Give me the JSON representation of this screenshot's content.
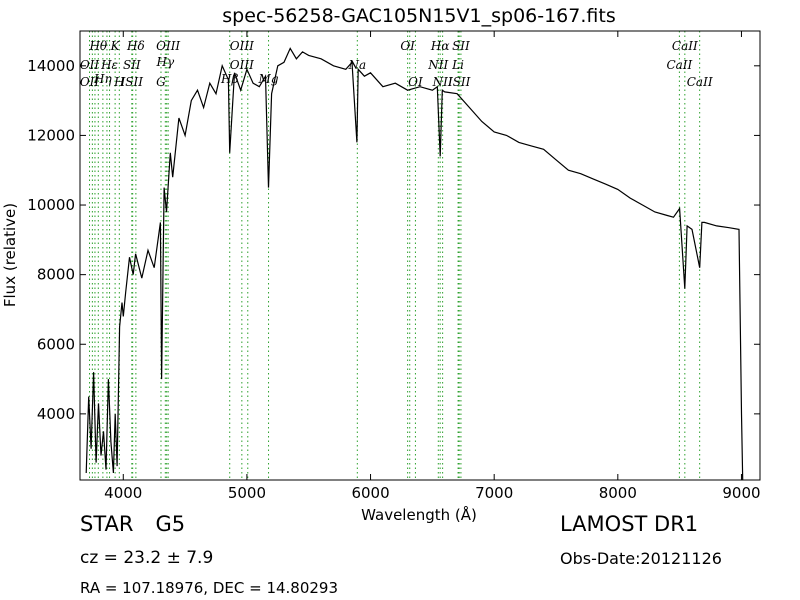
{
  "chart_data": {
    "type": "line",
    "title": "spec-56258-GAC105N15V1_sp06-167.fits",
    "xlabel": "Wavelength (Å)",
    "ylabel": "Flux (relative)",
    "xlim": [
      3650,
      9150
    ],
    "ylim": [
      2100,
      15000
    ],
    "x_ticks": [
      4000,
      5000,
      6000,
      7000,
      8000,
      9000
    ],
    "y_ticks": [
      4000,
      6000,
      8000,
      10000,
      12000,
      14000
    ],
    "grid": false,
    "legend": "none",
    "series_color": "#000000",
    "marker_color": "#2ca02c",
    "spectrum": {
      "x": [
        3700,
        3720,
        3740,
        3760,
        3780,
        3800,
        3820,
        3840,
        3860,
        3880,
        3900,
        3920,
        3935,
        3950,
        3970,
        3990,
        4000,
        4020,
        4050,
        4080,
        4100,
        4150,
        4200,
        4250,
        4300,
        4310,
        4330,
        4350,
        4380,
        4400,
        4450,
        4500,
        4550,
        4600,
        4650,
        4700,
        4750,
        4800,
        4850,
        4861,
        4900,
        4950,
        5000,
        5050,
        5100,
        5150,
        5175,
        5200,
        5250,
        5300,
        5350,
        5400,
        5450,
        5500,
        5600,
        5700,
        5800,
        5850,
        5890,
        5900,
        5950,
        6000,
        6100,
        6200,
        6300,
        6400,
        6500,
        6540,
        6563,
        6580,
        6600,
        6700,
        6800,
        6900,
        7000,
        7100,
        7200,
        7300,
        7400,
        7500,
        7600,
        7700,
        7800,
        7900,
        8000,
        8100,
        8200,
        8300,
        8400,
        8450,
        8500,
        8520,
        8542,
        8560,
        8600,
        8662,
        8680,
        8700,
        8800,
        8900,
        8980,
        9000,
        9010
      ],
      "y": [
        2300,
        4500,
        3000,
        5200,
        2600,
        4300,
        2800,
        3500,
        2400,
        5000,
        3200,
        2300,
        4000,
        2500,
        6500,
        7200,
        6800,
        7500,
        8500,
        8000,
        8600,
        7900,
        8700,
        8200,
        9500,
        5000,
        10500,
        9800,
        11500,
        10800,
        12500,
        12000,
        13000,
        13300,
        12800,
        13500,
        13200,
        14000,
        13600,
        11500,
        13800,
        13300,
        13900,
        13500,
        13400,
        13700,
        10500,
        13200,
        14000,
        14100,
        14500,
        14200,
        14400,
        14300,
        14200,
        14000,
        13900,
        14100,
        11800,
        13900,
        13700,
        13800,
        13400,
        13500,
        13300,
        13400,
        13300,
        13400,
        11400,
        13300,
        13250,
        13200,
        12800,
        12400,
        12100,
        12000,
        11800,
        11700,
        11600,
        11300,
        11000,
        10900,
        10750,
        10600,
        10450,
        10200,
        10000,
        9800,
        9700,
        9650,
        9900,
        8800,
        7600,
        9400,
        9300,
        8200,
        9500,
        9500,
        9400,
        9350,
        9300,
        4000,
        2100
      ]
    },
    "line_markers": [
      {
        "label": "Hθ",
        "x": 3798,
        "row": 0
      },
      {
        "label": "K",
        "x": 3934,
        "row": 0
      },
      {
        "label": "Hδ",
        "x": 4102,
        "row": 0
      },
      {
        "label": "OIII",
        "x": 4363,
        "row": 0
      },
      {
        "label": "OIII",
        "x": 4959,
        "row": 0
      },
      {
        "label": "OI",
        "x": 6300,
        "row": 0
      },
      {
        "label": "Hα",
        "x": 6563,
        "row": 0
      },
      {
        "label": "SII",
        "x": 6731,
        "row": 0
      },
      {
        "label": "CaII",
        "x": 8542,
        "row": 0
      },
      {
        "label": "Hγ",
        "x": 4340,
        "row": 1
      },
      {
        "label": "OII",
        "x": 3727,
        "row": 2
      },
      {
        "label": "Hε",
        "x": 3889,
        "row": 2
      },
      {
        "label": "SII",
        "x": 4069,
        "row": 2
      },
      {
        "label": "OIII",
        "x": 4959,
        "row": 2
      },
      {
        "label": "Na",
        "x": 5893,
        "row": 2
      },
      {
        "label": "NII",
        "x": 6548,
        "row": 2
      },
      {
        "label": "Li",
        "x": 6708,
        "row": 2
      },
      {
        "label": "CaII",
        "x": 8498,
        "row": 2
      },
      {
        "label": "Hη",
        "x": 3835,
        "row": 3
      },
      {
        "label": "Hβ",
        "x": 4861,
        "row": 3
      },
      {
        "label": "Mg",
        "x": 5175,
        "row": 3
      },
      {
        "label": "OII",
        "x": 3727,
        "row": 4
      },
      {
        "label": "ISII",
        "x": 4069,
        "row": 4
      },
      {
        "label": "H",
        "x": 3968,
        "row": 4
      },
      {
        "label": "G",
        "x": 4305,
        "row": 4
      },
      {
        "label": "OI",
        "x": 6363,
        "row": 4
      },
      {
        "label": "NII",
        "x": 6583,
        "row": 4
      },
      {
        "label": "ISII",
        "x": 6717,
        "row": 4
      },
      {
        "label": "CaII",
        "x": 8662,
        "row": 4
      }
    ],
    "extra_marker_lines": [
      3750,
      3771,
      3868,
      4076,
      4351,
      5007,
      6317,
      6716
    ]
  },
  "info": {
    "object_class": "STAR",
    "subclass": "G5",
    "cz": "cz = 23.2 ± 7.9",
    "ra_dec": "RA = 107.18976, DEC = 14.80293",
    "survey": "LAMOST DR1",
    "obs_date": "Obs-Date:20121126"
  }
}
